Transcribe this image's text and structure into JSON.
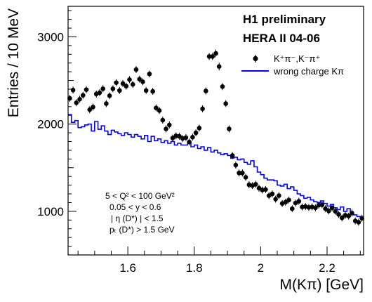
{
  "chart_data": {
    "type": "scatter",
    "title": "H1 preliminary",
    "subtitle": "HERA II 04-06",
    "xlabel": "M(Kπ) [GeV]",
    "ylabel": "Entries / 10 MeV",
    "xlim": [
      1.42,
      2.31
    ],
    "ylim": [
      500,
      3350
    ],
    "xticks": [
      1.6,
      1.8,
      2.0,
      2.2
    ],
    "xtick_labels": [
      "1.6",
      "1.8",
      "2",
      "2.2"
    ],
    "yticks": [
      1000,
      2000,
      3000
    ],
    "ytick_labels": [
      "1000",
      "2000",
      "3000"
    ],
    "legend_position": "top-right",
    "legend": {
      "points_label": "K⁺π⁻,K⁻π⁺",
      "line_label": "wrong charge Kπ"
    },
    "cuts": [
      "5 < Q² < 100 GeV²",
      "0.05 < y < 0.6",
      "| η (D*) | < 1.5",
      "pₜ (D*) > 1.5 GeV"
    ],
    "colors": {
      "points": "#000000",
      "line": "#0000ff"
    },
    "series": [
      {
        "name": "K⁺π⁻,K⁻π⁺",
        "type": "scatter-errorbars",
        "points": [
          [
            1.425,
            2295,
            40
          ],
          [
            1.435,
            2390,
            40
          ],
          [
            1.445,
            2245,
            40
          ],
          [
            1.455,
            2285,
            40
          ],
          [
            1.465,
            2330,
            40
          ],
          [
            1.475,
            2395,
            40
          ],
          [
            1.485,
            2165,
            40
          ],
          [
            1.495,
            2195,
            40
          ],
          [
            1.505,
            2345,
            40
          ],
          [
            1.515,
            2360,
            40
          ],
          [
            1.525,
            2405,
            40
          ],
          [
            1.535,
            2235,
            40
          ],
          [
            1.545,
            2325,
            40
          ],
          [
            1.555,
            2405,
            40
          ],
          [
            1.565,
            2475,
            40
          ],
          [
            1.575,
            2385,
            40
          ],
          [
            1.585,
            2465,
            40
          ],
          [
            1.595,
            2435,
            40
          ],
          [
            1.605,
            2510,
            40
          ],
          [
            1.615,
            2455,
            40
          ],
          [
            1.625,
            2625,
            40
          ],
          [
            1.635,
            2515,
            40
          ],
          [
            1.645,
            2485,
            40
          ],
          [
            1.655,
            2385,
            40
          ],
          [
            1.665,
            2575,
            40
          ],
          [
            1.675,
            2375,
            40
          ],
          [
            1.685,
            2185,
            40
          ],
          [
            1.695,
            2155,
            40
          ],
          [
            1.705,
            2045,
            40
          ],
          [
            1.715,
            1945,
            40
          ],
          [
            1.725,
            1990,
            40
          ],
          [
            1.735,
            1840,
            40
          ],
          [
            1.745,
            1865,
            40
          ],
          [
            1.755,
            1860,
            40
          ],
          [
            1.765,
            1835,
            40
          ],
          [
            1.775,
            1845,
            40
          ],
          [
            1.785,
            1795,
            40
          ],
          [
            1.795,
            1850,
            40
          ],
          [
            1.805,
            1900,
            40
          ],
          [
            1.815,
            1955,
            40
          ],
          [
            1.825,
            2175,
            40
          ],
          [
            1.835,
            2380,
            40
          ],
          [
            1.845,
            2775,
            40
          ],
          [
            1.855,
            2775,
            40
          ],
          [
            1.865,
            2810,
            45
          ],
          [
            1.875,
            2660,
            45
          ],
          [
            1.885,
            2430,
            40
          ],
          [
            1.895,
            2235,
            40
          ],
          [
            1.905,
            1945,
            40
          ],
          [
            1.915,
            1640,
            40
          ],
          [
            1.925,
            1530,
            40
          ],
          [
            1.935,
            1440,
            40
          ],
          [
            1.945,
            1440,
            40
          ],
          [
            1.955,
            1390,
            40
          ],
          [
            1.965,
            1305,
            40
          ],
          [
            1.975,
            1295,
            40
          ],
          [
            1.985,
            1310,
            40
          ],
          [
            1.995,
            1265,
            40
          ],
          [
            2.005,
            1245,
            40
          ],
          [
            2.015,
            1250,
            40
          ],
          [
            2.025,
            1180,
            40
          ],
          [
            2.035,
            1200,
            40
          ],
          [
            2.045,
            1140,
            40
          ],
          [
            2.055,
            1180,
            40
          ],
          [
            2.065,
            1090,
            40
          ],
          [
            2.075,
            1105,
            40
          ],
          [
            2.085,
            1130,
            40
          ],
          [
            2.095,
            1030,
            40
          ],
          [
            2.105,
            1095,
            40
          ],
          [
            2.115,
            1115,
            40
          ],
          [
            2.125,
            1050,
            40
          ],
          [
            2.135,
            1055,
            40
          ],
          [
            2.145,
            1045,
            40
          ],
          [
            2.155,
            1050,
            40
          ],
          [
            2.165,
            1040,
            40
          ],
          [
            2.175,
            1070,
            40
          ],
          [
            2.185,
            1075,
            40
          ],
          [
            2.195,
            1030,
            40
          ],
          [
            2.205,
            1005,
            40
          ],
          [
            2.215,
            1040,
            40
          ],
          [
            2.225,
            1000,
            40
          ],
          [
            2.235,
            965,
            40
          ],
          [
            2.245,
            925,
            40
          ],
          [
            2.255,
            955,
            40
          ],
          [
            2.265,
            945,
            40
          ],
          [
            2.275,
            980,
            40
          ],
          [
            2.285,
            890,
            40
          ],
          [
            2.295,
            875,
            40
          ],
          [
            2.305,
            920,
            40
          ]
        ]
      },
      {
        "name": "wrong charge Kπ",
        "type": "step",
        "bin_width": 0.01,
        "bin_starts_at": 1.42,
        "values": [
          2110,
          2020,
          2040,
          1960,
          1970,
          1990,
          2000,
          1920,
          2030,
          1940,
          1980,
          1920,
          1880,
          1930,
          1910,
          1890,
          1870,
          1900,
          1880,
          1850,
          1880,
          1860,
          1830,
          1870,
          1800,
          1860,
          1810,
          1830,
          1790,
          1810,
          1780,
          1800,
          1760,
          1780,
          1760,
          1760,
          1790,
          1740,
          1760,
          1720,
          1740,
          1700,
          1730,
          1680,
          1700,
          1670,
          1650,
          1660,
          1640,
          1610,
          1620,
          1590,
          1600,
          1560,
          1540,
          1580,
          1510,
          1450,
          1420,
          1380,
          1360,
          1360,
          1350,
          1300,
          1290,
          1310,
          1260,
          1280,
          1240,
          1200,
          1180,
          1150,
          1160,
          1130,
          1110,
          1100,
          1120,
          1090,
          1060,
          1080,
          1040,
          1020,
          1050,
          1000,
          1030,
          980,
          960,
          940,
          920
        ]
      }
    ]
  }
}
